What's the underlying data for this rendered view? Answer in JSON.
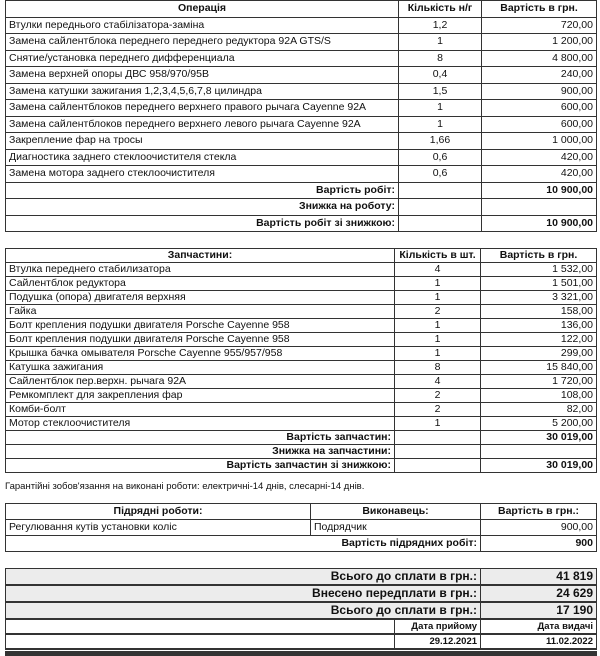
{
  "works": {
    "headers": [
      "Операція",
      "Кількість н/г",
      "Вартість в грн."
    ],
    "rows": [
      [
        "Втулки переднього стабілізатора-заміна",
        "1,2",
        "720,00"
      ],
      [
        "Замена сайлентблока переднего переднего редуктора 92A GTS/S",
        "1",
        "1 200,00"
      ],
      [
        "Снятие/установка переднего дифференциала",
        "8",
        "4 800,00"
      ],
      [
        "Замена верхней опоры ДВС 958/970/95B",
        "0,4",
        "240,00"
      ],
      [
        "Замена катушки зажигания 1,2,3,4,5,6,7,8 цилиндра",
        "1,5",
        "900,00"
      ],
      [
        "Замена сайлентблоков переднего верхнего правого рычага Cayenne 92A",
        "1",
        "600,00"
      ],
      [
        "Замена сайлентблоков переднего верхнего левого рычага Cayenne 92A",
        "1",
        "600,00"
      ],
      [
        "Закрепление фар на тросы",
        "1,66",
        "1 000,00"
      ],
      [
        "Диагностика заднего стеклоочистителя стекла",
        "0,6",
        "420,00"
      ],
      [
        "Замена мотора заднего стеклоочистителя",
        "0,6",
        "420,00"
      ]
    ],
    "total_label": "Вартість робіт:",
    "total": "10 900,00",
    "discount_label": "Знижка на роботу:",
    "discount": "",
    "final_label": "Вартість робіт зі знижкою:",
    "final": "10 900,00"
  },
  "parts": {
    "headers": [
      "Запчастини:",
      "Кількість в шт.",
      "Вартість в грн."
    ],
    "rows": [
      [
        "Втулка переднего стабилизатора",
        "4",
        "1 532,00"
      ],
      [
        "Сайлентблок редуктора",
        "1",
        "1 501,00"
      ],
      [
        "Подушка (опора) двигателя верхняя",
        "1",
        "3 321,00"
      ],
      [
        "Гайка",
        "2",
        "158,00"
      ],
      [
        "Болт крепления подушки двигателя Porsche Cayenne 958",
        "1",
        "136,00"
      ],
      [
        "Болт крепления подушки двигателя Porsche Cayenne 958",
        "1",
        "122,00"
      ],
      [
        "Крышка бачка омывателя Porsche Cayenne 955/957/958",
        "1",
        "299,00"
      ],
      [
        "Катушка зажигания",
        "8",
        "15 840,00"
      ],
      [
        "Сайлентблок пер.верхн. рычага 92A",
        "4",
        "1 720,00"
      ],
      [
        "Ремкомплект для закрепления фар",
        "2",
        "108,00"
      ],
      [
        "Комби-болт",
        "2",
        "82,00"
      ],
      [
        "Мотор стеклоочистителя",
        "1",
        "5 200,00"
      ]
    ],
    "total_label": "Вартість запчастин:",
    "total": "30 019,00",
    "discount_label": "Знижка на запчастини:",
    "discount": "",
    "final_label": "Вартість запчастин зі знижкою:",
    "final": "30 019,00"
  },
  "warranty": "Гарантійні зобов'язання на виконані роботи: електричні-14 днів, слесарні-14 днів.",
  "subcontract": {
    "headers": [
      "Підрядні роботи:",
      "Виконавець:",
      "Вартість в грн.:"
    ],
    "rows": [
      [
        "Регулювання кутів установки коліс",
        "Подрядчик",
        "900,00"
      ]
    ],
    "total_label": "Вартість підрядних робіт:",
    "total": "900"
  },
  "summary": {
    "total_label": "Всього до сплати в грн.:",
    "total": "41 819",
    "prepaid_label": "Внесено передплати в грн.:",
    "prepaid": "24 629",
    "due_label": "Всього до сплати в грн.:",
    "due": "17 190",
    "received_label": "Дата прийому",
    "received": "29.12.2021",
    "issued_label": "Дата видачі",
    "issued": "11.02.2022"
  }
}
